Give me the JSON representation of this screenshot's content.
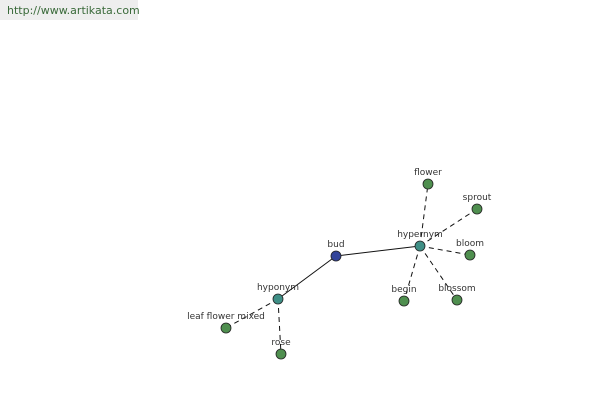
{
  "header": {
    "url": "http://www.artikata.com"
  },
  "nodes": [
    {
      "label": "bud"
    },
    {
      "label": "hypernym"
    },
    {
      "label": "hyponym"
    },
    {
      "label": "flower"
    },
    {
      "label": "sprout"
    },
    {
      "label": "bloom"
    },
    {
      "label": "blossom"
    },
    {
      "label": "begin"
    },
    {
      "label": "leaf flower mixed"
    },
    {
      "label": "rose"
    }
  ]
}
